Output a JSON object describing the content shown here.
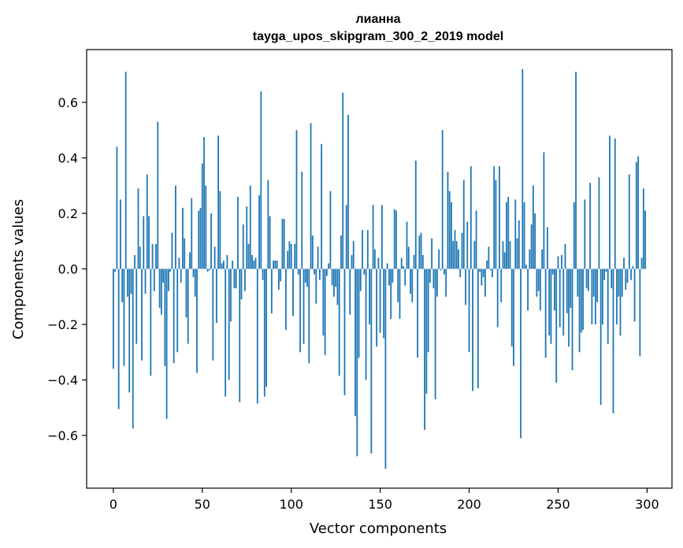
{
  "chart_data": {
    "type": "bar",
    "title": "лианна",
    "subtitle": "tayga_upos_skipgram_300_2_2019 model",
    "xlabel": "Vector components",
    "ylabel": "Components values",
    "xlim": [
      -15,
      314
    ],
    "ylim": [
      -0.79,
      0.79
    ],
    "xticks": [
      0,
      50,
      100,
      150,
      200,
      250,
      300
    ],
    "yticks": [
      -0.6,
      -0.4,
      -0.2,
      0.0,
      0.2,
      0.4,
      0.6
    ],
    "xtick_labels": [
      "0",
      "50",
      "100",
      "150",
      "200",
      "250",
      "300"
    ],
    "ytick_labels": [
      "−0.6",
      "−0.4",
      "−0.2",
      "0.0",
      "0.2",
      "0.4",
      "0.6"
    ],
    "grid": false,
    "legend": "none",
    "bar_color": "#1f77b4",
    "x": [
      0,
      1,
      2,
      3,
      4,
      5,
      6,
      7,
      8,
      9,
      10,
      11,
      12,
      13,
      14,
      15,
      16,
      17,
      18,
      19,
      20,
      21,
      22,
      23,
      24,
      25,
      26,
      27,
      28,
      29,
      30,
      31,
      32,
      33,
      34,
      35,
      36,
      37,
      38,
      39,
      40,
      41,
      42,
      43,
      44,
      45,
      46,
      47,
      48,
      49,
      50,
      51,
      52,
      53,
      54,
      55,
      56,
      57,
      58,
      59,
      60,
      61,
      62,
      63,
      64,
      65,
      66,
      67,
      68,
      69,
      70,
      71,
      72,
      73,
      74,
      75,
      76,
      77,
      78,
      79,
      80,
      81,
      82,
      83,
      84,
      85,
      86,
      87,
      88,
      89,
      90,
      91,
      92,
      93,
      94,
      95,
      96,
      97,
      98,
      99,
      100,
      101,
      102,
      103,
      104,
      105,
      106,
      107,
      108,
      109,
      110,
      111,
      112,
      113,
      114,
      115,
      116,
      117,
      118,
      119,
      120,
      121,
      122,
      123,
      124,
      125,
      126,
      127,
      128,
      129,
      130,
      131,
      132,
      133,
      134,
      135,
      136,
      137,
      138,
      139,
      140,
      141,
      142,
      143,
      144,
      145,
      146,
      147,
      148,
      149,
      150,
      151,
      152,
      153,
      154,
      155,
      156,
      157,
      158,
      159,
      160,
      161,
      162,
      163,
      164,
      165,
      166,
      167,
      168,
      169,
      170,
      171,
      172,
      173,
      174,
      175,
      176,
      177,
      178,
      179,
      180,
      181,
      182,
      183,
      184,
      185,
      186,
      187,
      188,
      189,
      190,
      191,
      192,
      193,
      194,
      195,
      196,
      197,
      198,
      199,
      200,
      201,
      202,
      203,
      204,
      205,
      206,
      207,
      208,
      209,
      210,
      211,
      212,
      213,
      214,
      215,
      216,
      217,
      218,
      219,
      220,
      221,
      222,
      223,
      224,
      225,
      226,
      227,
      228,
      229,
      230,
      231,
      232,
      233,
      234,
      235,
      236,
      237,
      238,
      239,
      240,
      241,
      242,
      243,
      244,
      245,
      246,
      247,
      248,
      249,
      250,
      251,
      252,
      253,
      254,
      255,
      256,
      257,
      258,
      259,
      260,
      261,
      262,
      263,
      264,
      265,
      266,
      267,
      268,
      269,
      270,
      271,
      272,
      273,
      274,
      275,
      276,
      277,
      278,
      279,
      280,
      281,
      282,
      283,
      284,
      285,
      286,
      287,
      288,
      289,
      290,
      291,
      292,
      293,
      294,
      295,
      296,
      297,
      298,
      299
    ],
    "values": [
      -0.36,
      -0.01,
      0.44,
      -0.505,
      0.25,
      -0.12,
      -0.35,
      0.71,
      -0.1,
      -0.445,
      -0.09,
      -0.575,
      0.05,
      -0.27,
      0.29,
      0.08,
      -0.33,
      0.19,
      -0.09,
      0.34,
      0.19,
      -0.385,
      0.09,
      -0.08,
      0.09,
      0.53,
      -0.14,
      -0.165,
      -0.05,
      -0.35,
      -0.54,
      -0.08,
      -0.01,
      0.13,
      -0.34,
      0.3,
      -0.3,
      0.04,
      -0.05,
      0.22,
      0.11,
      -0.175,
      -0.27,
      0.06,
      0.255,
      -0.03,
      -0.1,
      -0.375,
      0.21,
      0.22,
      0.38,
      0.475,
      0.3,
      -0.01,
      -0.005,
      0.2,
      -0.33,
      0.08,
      -0.195,
      0.48,
      0.28,
      0.02,
      0.03,
      -0.46,
      0.05,
      -0.4,
      -0.19,
      0.03,
      -0.07,
      -0.07,
      0.26,
      -0.48,
      -0.11,
      0.16,
      -0.08,
      0.225,
      0.09,
      0.3,
      0.05,
      0.03,
      0.04,
      -0.485,
      0.265,
      0.64,
      -0.04,
      -0.46,
      -0.425,
      0.32,
      0.19,
      -0.16,
      0.03,
      0.03,
      0.03,
      -0.075,
      -0.045,
      0.18,
      0.18,
      -0.22,
      0.065,
      0.1,
      0.09,
      -0.17,
      0.09,
      0.5,
      -0.02,
      -0.3,
      0.35,
      -0.27,
      -0.05,
      -0.065,
      -0.34,
      0.525,
      0.12,
      -0.02,
      -0.125,
      0.08,
      -0.04,
      0.45,
      -0.24,
      -0.31,
      -0.025,
      0.02,
      0.28,
      -0.06,
      -0.1,
      -0.065,
      -0.13,
      -0.385,
      0.12,
      0.635,
      -0.455,
      0.23,
      0.555,
      -0.165,
      0.05,
      0.1,
      -0.53,
      -0.675,
      -0.32,
      -0.08,
      0.14,
      -0.02,
      -0.4,
      0.14,
      -0.2,
      -0.665,
      0.23,
      0.07,
      -0.28,
      0.04,
      -0.23,
      0.23,
      -0.25,
      -0.72,
      0.02,
      -0.06,
      -0.18,
      -0.05,
      0.215,
      0.21,
      -0.12,
      -0.18,
      0.04,
      0.01,
      -0.06,
      0.17,
      0.08,
      -0.09,
      -0.12,
      0.05,
      0.39,
      -0.32,
      0.12,
      0.13,
      0.05,
      -0.58,
      -0.45,
      -0.3,
      -0.05,
      0.11,
      -0.07,
      -0.47,
      -0.1,
      0.07,
      -0.005,
      0.5,
      -0.02,
      -0.1,
      0.35,
      0.28,
      0.24,
      0.1,
      0.14,
      0.1,
      0.07,
      -0.03,
      0.13,
      0.32,
      -0.13,
      0.17,
      -0.3,
      0.37,
      -0.44,
      0.1,
      0.21,
      -0.43,
      -0.01,
      -0.06,
      -0.03,
      -0.1,
      0.03,
      0.08,
      -0.005,
      -0.03,
      0.37,
      0.32,
      -0.21,
      0.37,
      -0.12,
      0.1,
      0.06,
      0.24,
      0.26,
      0.1,
      -0.28,
      -0.35,
      0.25,
      0.11,
      0.175,
      -0.61,
      0.72,
      0.24,
      0.015,
      -0.15,
      0.07,
      0.16,
      0.3,
      0.2,
      -0.1,
      -0.08,
      -0.15,
      0.07,
      0.42,
      -0.32,
      0.15,
      -0.24,
      -0.27,
      -0.02,
      -0.15,
      -0.41,
      0.045,
      -0.21,
      0.05,
      -0.24,
      0.09,
      -0.16,
      -0.28,
      -0.14,
      -0.365,
      0.24,
      0.71,
      -0.1,
      -0.3,
      -0.23,
      -0.22,
      0.25,
      -0.07,
      -0.08,
      0.31,
      -0.2,
      -0.1,
      -0.2,
      -0.12,
      0.33,
      -0.49,
      -0.2,
      -0.04,
      -0.01,
      -0.27,
      0.48,
      -0.07,
      -0.52,
      0.47,
      -0.2,
      -0.1,
      -0.24,
      -0.1,
      0.04,
      -0.075,
      -0.05,
      0.34,
      -0.04,
      0.01,
      -0.19,
      0.385,
      0.405,
      -0.315,
      0.04,
      0.29,
      0.21
    ]
  }
}
